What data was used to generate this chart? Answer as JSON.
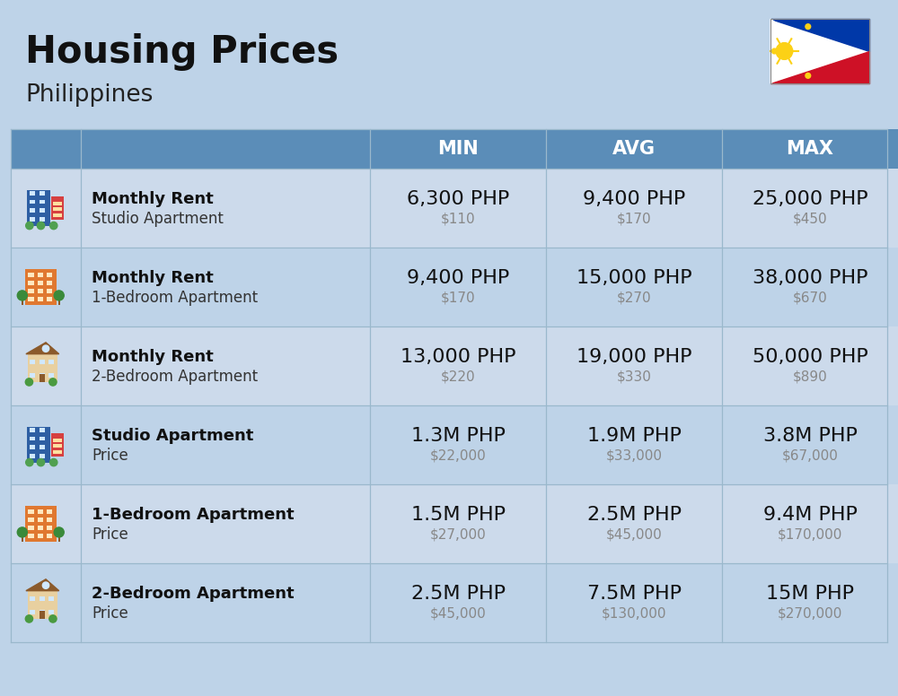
{
  "title": "Housing Prices",
  "subtitle": "Philippines",
  "bg_color": "#bed3e8",
  "header_bg": "#5b8db8",
  "header_text_color": "#ffffff",
  "row_bg_even": "#ccdaeb",
  "row_bg_odd": "#bed3e8",
  "col_headers": [
    "MIN",
    "AVG",
    "MAX"
  ],
  "rows": [
    {
      "icon_type": "blue_studio",
      "label_bold": "Monthly Rent",
      "label_sub": "Studio Apartment",
      "min_php": "6,300 PHP",
      "min_usd": "$110",
      "avg_php": "9,400 PHP",
      "avg_usd": "$170",
      "max_php": "25,000 PHP",
      "max_usd": "$450"
    },
    {
      "icon_type": "orange_apt",
      "label_bold": "Monthly Rent",
      "label_sub": "1-Bedroom Apartment",
      "min_php": "9,400 PHP",
      "min_usd": "$170",
      "avg_php": "15,000 PHP",
      "avg_usd": "$270",
      "max_php": "38,000 PHP",
      "max_usd": "$670"
    },
    {
      "icon_type": "beige_house",
      "label_bold": "Monthly Rent",
      "label_sub": "2-Bedroom Apartment",
      "min_php": "13,000 PHP",
      "min_usd": "$220",
      "avg_php": "19,000 PHP",
      "avg_usd": "$330",
      "max_php": "50,000 PHP",
      "max_usd": "$890"
    },
    {
      "icon_type": "blue_studio",
      "label_bold": "Studio Apartment",
      "label_sub": "Price",
      "min_php": "1.3M PHP",
      "min_usd": "$22,000",
      "avg_php": "1.9M PHP",
      "avg_usd": "$33,000",
      "max_php": "3.8M PHP",
      "max_usd": "$67,000"
    },
    {
      "icon_type": "orange_apt",
      "label_bold": "1-Bedroom Apartment",
      "label_sub": "Price",
      "min_php": "1.5M PHP",
      "min_usd": "$27,000",
      "avg_php": "2.5M PHP",
      "avg_usd": "$45,000",
      "max_php": "9.4M PHP",
      "max_usd": "$170,000"
    },
    {
      "icon_type": "beige_house",
      "label_bold": "2-Bedroom Apartment",
      "label_sub": "Price",
      "min_php": "2.5M PHP",
      "min_usd": "$45,000",
      "avg_php": "7.5M PHP",
      "avg_usd": "$130,000",
      "max_php": "15M PHP",
      "max_usd": "$270,000"
    }
  ],
  "php_fontsize": 16,
  "usd_fontsize": 11,
  "label_bold_fontsize": 13,
  "label_sub_fontsize": 12,
  "header_fontsize": 15,
  "title_fontsize": 30,
  "subtitle_fontsize": 19
}
